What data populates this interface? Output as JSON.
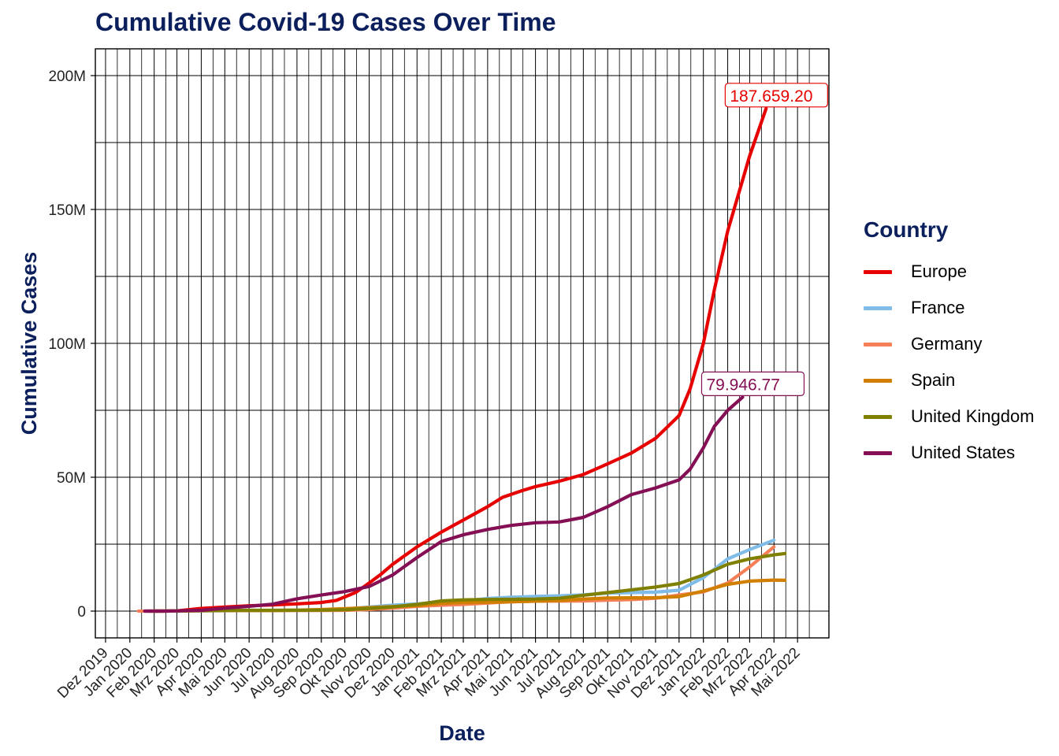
{
  "chart_data": {
    "type": "line",
    "title": "Cumulative Covid-19 Cases Over Time",
    "xlabel": "Date",
    "ylabel": "Cumulative Cases",
    "xlim": [
      "2019-11-18",
      "2022-06-10"
    ],
    "ylim": [
      -10000000,
      210000000
    ],
    "y_ticks": [
      0,
      50000000,
      100000000,
      150000000,
      200000000
    ],
    "y_tick_labels": [
      "0",
      "50M",
      "100M",
      "150M",
      "200M"
    ],
    "x_tick_dates": [
      "2019-12-01",
      "2020-01-01",
      "2020-02-01",
      "2020-03-01",
      "2020-04-01",
      "2020-05-01",
      "2020-06-01",
      "2020-07-01",
      "2020-08-01",
      "2020-09-01",
      "2020-10-01",
      "2020-11-01",
      "2020-12-01",
      "2021-01-01",
      "2021-02-01",
      "2021-03-01",
      "2021-04-01",
      "2021-05-01",
      "2021-06-01",
      "2021-07-01",
      "2021-08-01",
      "2021-09-01",
      "2021-10-01",
      "2021-11-01",
      "2021-12-01",
      "2022-01-01",
      "2022-02-01",
      "2022-03-01",
      "2022-04-01",
      "2022-05-01"
    ],
    "x_tick_labels": [
      "Dez 2019",
      "Jan 2020",
      "Feb 2020",
      "Mrz 2020",
      "Apr 2020",
      "Mai 2020",
      "Jun 2020",
      "Jul 2020",
      "Aug 2020",
      "Sep 2020",
      "Okt 2020",
      "Nov 2020",
      "Dez 2020",
      "Jan 2021",
      "Feb 2021",
      "Mrz 2021",
      "Apr 2021",
      "Mai 2021",
      "Jun 2021",
      "Jul 2021",
      "Aug 2021",
      "Sep 2021",
      "Okt 2021",
      "Nov 2021",
      "Dez 2021",
      "Jan 2022",
      "Feb 2022",
      "Mrz 2022",
      "Apr 2022",
      "Mai 2022"
    ],
    "grid": true,
    "legend_title": "Country",
    "legend_position": "right",
    "series": [
      {
        "name": "Europe",
        "color": "#e60000",
        "end_label": "187.659.20",
        "points": [
          [
            "2020-01-25",
            0
          ],
          [
            "2020-02-15",
            0
          ],
          [
            "2020-03-01",
            0.1
          ],
          [
            "2020-04-01",
            1.0
          ],
          [
            "2020-05-01",
            1.5
          ],
          [
            "2020-06-01",
            2.0
          ],
          [
            "2020-07-01",
            2.3
          ],
          [
            "2020-08-01",
            2.7
          ],
          [
            "2020-09-01",
            3.2
          ],
          [
            "2020-09-20",
            4.0
          ],
          [
            "2020-10-01",
            5.3
          ],
          [
            "2020-10-15",
            7.0
          ],
          [
            "2020-11-01",
            10.5
          ],
          [
            "2020-11-15",
            13.5
          ],
          [
            "2020-12-01",
            17.5
          ],
          [
            "2021-01-01",
            24.0
          ],
          [
            "2021-02-01",
            29.5
          ],
          [
            "2021-03-01",
            34.0
          ],
          [
            "2021-04-01",
            39.0
          ],
          [
            "2021-04-20",
            42.5
          ],
          [
            "2021-05-15",
            45.0
          ],
          [
            "2021-06-01",
            46.5
          ],
          [
            "2021-07-01",
            48.5
          ],
          [
            "2021-08-01",
            51.0
          ],
          [
            "2021-09-01",
            55.0
          ],
          [
            "2021-10-01",
            59.0
          ],
          [
            "2021-11-01",
            64.5
          ],
          [
            "2021-12-01",
            73.0
          ],
          [
            "2021-12-15",
            83.0
          ],
          [
            "2022-01-01",
            100.0
          ],
          [
            "2022-01-15",
            120.0
          ],
          [
            "2022-02-01",
            142.0
          ],
          [
            "2022-03-01",
            170.0
          ],
          [
            "2022-03-22",
            187.7
          ]
        ]
      },
      {
        "name": "France",
        "color": "#80bce8",
        "end_label": "",
        "points": [
          [
            "2020-02-01",
            0
          ],
          [
            "2020-03-01",
            0.05
          ],
          [
            "2020-04-01",
            0.1
          ],
          [
            "2020-05-01",
            0.15
          ],
          [
            "2020-06-01",
            0.2
          ],
          [
            "2020-07-01",
            0.25
          ],
          [
            "2020-08-01",
            0.3
          ],
          [
            "2020-09-01",
            0.5
          ],
          [
            "2020-10-01",
            0.8
          ],
          [
            "2020-11-01",
            1.5
          ],
          [
            "2020-12-01",
            2.2
          ],
          [
            "2021-01-01",
            2.7
          ],
          [
            "2021-02-01",
            3.3
          ],
          [
            "2021-03-01",
            3.8
          ],
          [
            "2021-04-01",
            4.7
          ],
          [
            "2021-05-01",
            5.2
          ],
          [
            "2021-06-01",
            5.5
          ],
          [
            "2021-07-01",
            5.7
          ],
          [
            "2021-08-01",
            6.1
          ],
          [
            "2021-09-01",
            6.7
          ],
          [
            "2021-10-01",
            6.9
          ],
          [
            "2021-11-01",
            7.1
          ],
          [
            "2021-12-01",
            7.8
          ],
          [
            "2022-01-01",
            12.5
          ],
          [
            "2022-02-01",
            19.5
          ],
          [
            "2022-03-01",
            23.0
          ],
          [
            "2022-04-01",
            26.5
          ]
        ]
      },
      {
        "name": "Germany",
        "color": "#f57f57",
        "end_label": "",
        "points": [
          [
            "2020-01-12",
            0
          ],
          [
            "2020-02-01",
            0
          ],
          [
            "2020-03-01",
            0.05
          ],
          [
            "2020-04-01",
            0.15
          ],
          [
            "2020-05-01",
            0.17
          ],
          [
            "2020-06-01",
            0.18
          ],
          [
            "2020-07-01",
            0.2
          ],
          [
            "2020-08-01",
            0.22
          ],
          [
            "2020-09-01",
            0.25
          ],
          [
            "2020-10-01",
            0.3
          ],
          [
            "2020-11-01",
            0.6
          ],
          [
            "2020-12-01",
            1.1
          ],
          [
            "2021-01-01",
            1.8
          ],
          [
            "2021-02-01",
            2.2
          ],
          [
            "2021-03-01",
            2.5
          ],
          [
            "2021-04-01",
            3.0
          ],
          [
            "2021-05-01",
            3.5
          ],
          [
            "2021-06-01",
            3.7
          ],
          [
            "2021-07-01",
            3.75
          ],
          [
            "2021-08-01",
            3.8
          ],
          [
            "2021-09-01",
            4.1
          ],
          [
            "2021-10-01",
            4.3
          ],
          [
            "2021-11-01",
            4.8
          ],
          [
            "2021-12-01",
            6.0
          ],
          [
            "2022-01-01",
            7.2
          ],
          [
            "2022-02-01",
            10.5
          ],
          [
            "2022-03-01",
            16.5
          ],
          [
            "2022-04-01",
            24.0
          ]
        ]
      },
      {
        "name": "Spain",
        "color": "#d17f00",
        "end_label": "",
        "points": [
          [
            "2020-02-01",
            0
          ],
          [
            "2020-03-01",
            0.05
          ],
          [
            "2020-04-01",
            0.2
          ],
          [
            "2020-05-01",
            0.23
          ],
          [
            "2020-06-01",
            0.24
          ],
          [
            "2020-07-01",
            0.25
          ],
          [
            "2020-08-01",
            0.35
          ],
          [
            "2020-09-01",
            0.6
          ],
          [
            "2020-10-01",
            0.9
          ],
          [
            "2020-11-01",
            1.3
          ],
          [
            "2020-12-01",
            1.7
          ],
          [
            "2021-01-01",
            2.0
          ],
          [
            "2021-02-01",
            2.9
          ],
          [
            "2021-03-01",
            3.2
          ],
          [
            "2021-04-01",
            3.3
          ],
          [
            "2021-05-01",
            3.5
          ],
          [
            "2021-06-01",
            3.7
          ],
          [
            "2021-07-01",
            3.9
          ],
          [
            "2021-08-01",
            4.5
          ],
          [
            "2021-09-01",
            4.9
          ],
          [
            "2021-10-01",
            4.97
          ],
          [
            "2021-11-01",
            5.0
          ],
          [
            "2021-12-01",
            5.4
          ],
          [
            "2022-01-01",
            7.5
          ],
          [
            "2022-02-01",
            10.0
          ],
          [
            "2022-03-01",
            11.2
          ],
          [
            "2022-04-01",
            11.6
          ],
          [
            "2022-04-15",
            11.5
          ]
        ]
      },
      {
        "name": "United Kingdom",
        "color": "#808000",
        "end_label": "",
        "points": [
          [
            "2020-02-01",
            0
          ],
          [
            "2020-03-01",
            0.05
          ],
          [
            "2020-04-01",
            0.15
          ],
          [
            "2020-05-01",
            0.25
          ],
          [
            "2020-06-01",
            0.28
          ],
          [
            "2020-07-01",
            0.3
          ],
          [
            "2020-08-01",
            0.32
          ],
          [
            "2020-09-01",
            0.35
          ],
          [
            "2020-10-01",
            0.5
          ],
          [
            "2020-11-01",
            1.0
          ],
          [
            "2020-12-01",
            1.6
          ],
          [
            "2021-01-01",
            2.5
          ],
          [
            "2021-02-01",
            3.8
          ],
          [
            "2021-03-01",
            4.2
          ],
          [
            "2021-04-01",
            4.35
          ],
          [
            "2021-05-01",
            4.42
          ],
          [
            "2021-06-01",
            4.5
          ],
          [
            "2021-07-01",
            4.8
          ],
          [
            "2021-08-01",
            5.9
          ],
          [
            "2021-09-01",
            6.9
          ],
          [
            "2021-10-01",
            7.9
          ],
          [
            "2021-11-01",
            9.0
          ],
          [
            "2021-12-01",
            10.3
          ],
          [
            "2022-01-01",
            13.5
          ],
          [
            "2022-02-01",
            17.5
          ],
          [
            "2022-03-01",
            19.5
          ],
          [
            "2022-04-01",
            21.0
          ],
          [
            "2022-04-15",
            21.5
          ]
        ]
      },
      {
        "name": "United States",
        "color": "#850f54",
        "end_label": "79.946.77",
        "points": [
          [
            "2020-01-20",
            0
          ],
          [
            "2020-02-15",
            0
          ],
          [
            "2020-03-01",
            0.1
          ],
          [
            "2020-04-01",
            0.3
          ],
          [
            "2020-05-01",
            1.1
          ],
          [
            "2020-06-01",
            1.8
          ],
          [
            "2020-07-01",
            2.6
          ],
          [
            "2020-08-01",
            4.6
          ],
          [
            "2020-09-01",
            6.0
          ],
          [
            "2020-10-01",
            7.3
          ],
          [
            "2020-11-01",
            9.2
          ],
          [
            "2020-12-01",
            13.5
          ],
          [
            "2021-01-01",
            20.0
          ],
          [
            "2021-02-01",
            26.0
          ],
          [
            "2021-03-01",
            28.5
          ],
          [
            "2021-04-01",
            30.5
          ],
          [
            "2021-05-01",
            32.0
          ],
          [
            "2021-06-01",
            33.0
          ],
          [
            "2021-07-01",
            33.3
          ],
          [
            "2021-08-01",
            35.0
          ],
          [
            "2021-09-01",
            39.0
          ],
          [
            "2021-10-01",
            43.5
          ],
          [
            "2021-11-01",
            46.0
          ],
          [
            "2021-12-01",
            49.0
          ],
          [
            "2021-12-15",
            53.0
          ],
          [
            "2022-01-01",
            61.0
          ],
          [
            "2022-01-15",
            69.0
          ],
          [
            "2022-02-01",
            75.0
          ],
          [
            "2022-02-20",
            79.9
          ]
        ]
      }
    ]
  }
}
